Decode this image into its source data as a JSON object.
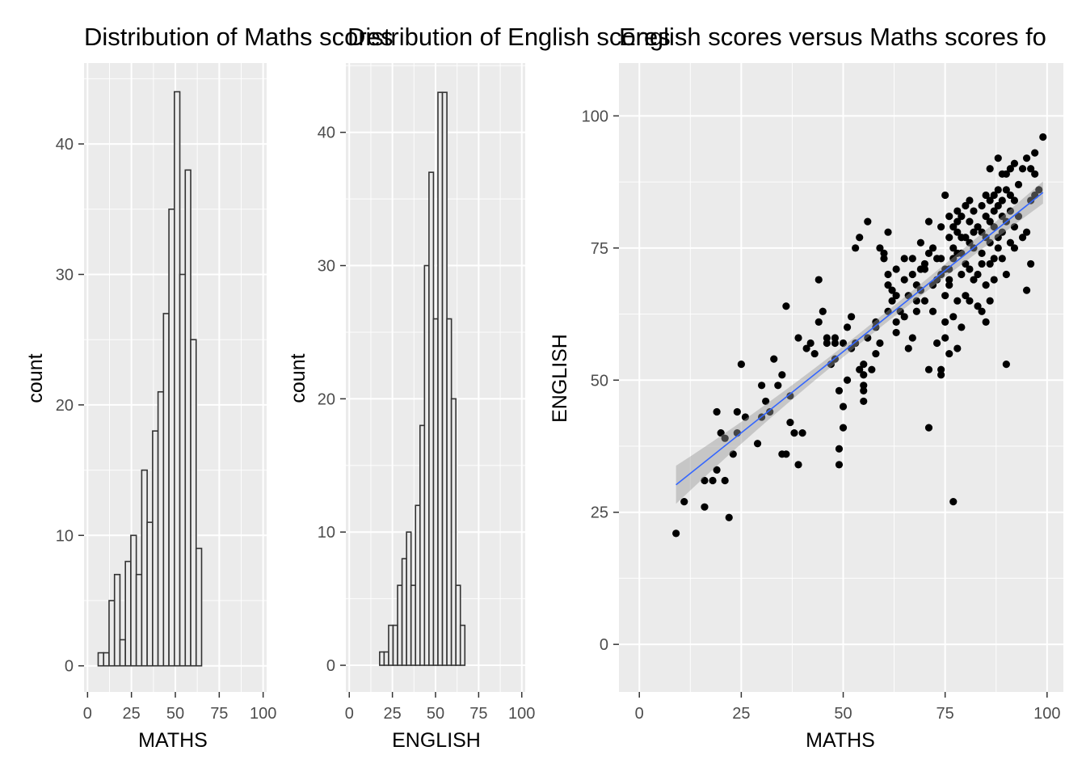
{
  "chart_data": [
    {
      "type": "bar",
      "subtype": "histogram",
      "title": "Distribution of Maths scores",
      "xlabel": "MATHS",
      "ylabel": "count",
      "xlim": [
        0,
        100
      ],
      "ylim": [
        0,
        44
      ],
      "xticks": [
        0,
        25,
        50,
        75,
        100
      ],
      "yticks": [
        0,
        10,
        20,
        30,
        40
      ],
      "bin_width": 3.1,
      "bins": [
        {
          "x": 7.6,
          "count": 1
        },
        {
          "x": 10.7,
          "count": 1
        },
        {
          "x": 13.8,
          "count": 5
        },
        {
          "x": 16.9,
          "count": 7
        },
        {
          "x": 20.0,
          "count": 2
        },
        {
          "x": 23.1,
          "count": 8
        },
        {
          "x": 26.2,
          "count": 10
        },
        {
          "x": 29.3,
          "count": 7
        },
        {
          "x": 32.4,
          "count": 15
        },
        {
          "x": 35.5,
          "count": 11
        },
        {
          "x": 38.6,
          "count": 18
        },
        {
          "x": 41.7,
          "count": 21
        },
        {
          "x": 44.8,
          "count": 27
        },
        {
          "x": 47.9,
          "count": 35
        },
        {
          "x": 51.0,
          "count": 44
        },
        {
          "x": 54.1,
          "count": 30
        },
        {
          "x": 57.2,
          "count": 38
        },
        {
          "x": 60.3,
          "count": 25
        },
        {
          "x": 63.4,
          "count": 9
        }
      ],
      "grid": true
    },
    {
      "type": "bar",
      "subtype": "histogram",
      "title": "Distribution of English scores",
      "xlabel": "ENGLISH",
      "ylabel": "count",
      "xlim": [
        0,
        100
      ],
      "ylim": [
        0,
        43
      ],
      "xticks": [
        0,
        25,
        50,
        75,
        100
      ],
      "yticks": [
        0,
        10,
        20,
        30,
        40
      ],
      "bin_width": 2.6,
      "bins": [
        {
          "x": 18.9,
          "count": 1
        },
        {
          "x": 21.5,
          "count": 1
        },
        {
          "x": 24.1,
          "count": 3
        },
        {
          "x": 26.7,
          "count": 3
        },
        {
          "x": 29.3,
          "count": 6
        },
        {
          "x": 31.9,
          "count": 8
        },
        {
          "x": 34.5,
          "count": 10
        },
        {
          "x": 37.1,
          "count": 6
        },
        {
          "x": 39.7,
          "count": 12
        },
        {
          "x": 42.3,
          "count": 18
        },
        {
          "x": 44.9,
          "count": 30
        },
        {
          "x": 47.5,
          "count": 37
        },
        {
          "x": 50.1,
          "count": 26
        },
        {
          "x": 52.7,
          "count": 43
        },
        {
          "x": 55.3,
          "count": 43
        },
        {
          "x": 57.9,
          "count": 26
        },
        {
          "x": 60.5,
          "count": 20
        },
        {
          "x": 63.1,
          "count": 6
        },
        {
          "x": 65.7,
          "count": 3
        }
      ],
      "grid": true
    },
    {
      "type": "scatter",
      "title": "English scores versus Maths scores fo",
      "xlabel": "MATHS",
      "ylabel": "ENGLISH",
      "xlim": [
        0,
        100
      ],
      "ylim": [
        0,
        100
      ],
      "xticks": [
        0,
        25,
        50,
        75,
        100
      ],
      "yticks": [
        0,
        25,
        50,
        75,
        100
      ],
      "smooth": {
        "method": "lm",
        "x": [
          9,
          99
        ],
        "y": [
          30.2,
          85.5
        ],
        "se_band_half_width": [
          3.6,
          2.1
        ]
      },
      "points": [
        [
          9,
          21
        ],
        [
          11,
          27
        ],
        [
          16,
          26
        ],
        [
          16,
          31
        ],
        [
          18,
          31
        ],
        [
          19,
          33
        ],
        [
          19,
          44
        ],
        [
          20,
          40
        ],
        [
          21,
          31
        ],
        [
          21,
          39
        ],
        [
          22,
          24
        ],
        [
          23,
          36
        ],
        [
          24,
          44
        ],
        [
          24,
          40
        ],
        [
          25,
          53
        ],
        [
          26,
          43
        ],
        [
          29,
          38
        ],
        [
          30,
          49
        ],
        [
          30,
          43
        ],
        [
          31,
          46
        ],
        [
          32,
          44
        ],
        [
          33,
          54
        ],
        [
          34,
          49
        ],
        [
          35,
          51
        ],
        [
          35,
          36
        ],
        [
          36,
          36
        ],
        [
          36,
          64
        ],
        [
          37,
          47
        ],
        [
          37,
          42
        ],
        [
          38,
          40
        ],
        [
          39,
          34
        ],
        [
          39,
          58
        ],
        [
          40,
          40
        ],
        [
          41,
          56
        ],
        [
          42,
          57
        ],
        [
          43,
          55
        ],
        [
          44,
          69
        ],
        [
          44,
          61
        ],
        [
          45,
          63
        ],
        [
          46,
          58
        ],
        [
          46,
          57
        ],
        [
          47,
          53
        ],
        [
          48,
          54
        ],
        [
          48,
          57
        ],
        [
          48,
          58
        ],
        [
          49,
          34
        ],
        [
          49,
          37
        ],
        [
          49,
          48
        ],
        [
          50,
          45
        ],
        [
          50,
          41
        ],
        [
          50,
          57
        ],
        [
          51,
          60
        ],
        [
          51,
          50
        ],
        [
          52,
          56
        ],
        [
          52,
          62
        ],
        [
          53,
          57
        ],
        [
          53,
          75
        ],
        [
          54,
          77
        ],
        [
          54,
          52
        ],
        [
          55,
          49
        ],
        [
          55,
          46
        ],
        [
          55,
          48
        ],
        [
          55,
          51
        ],
        [
          55,
          53
        ],
        [
          56,
          80
        ],
        [
          56,
          58
        ],
        [
          57,
          52
        ],
        [
          58,
          55
        ],
        [
          58,
          61
        ],
        [
          58,
          60
        ],
        [
          59,
          57
        ],
        [
          59,
          75
        ],
        [
          60,
          73
        ],
        [
          60,
          74
        ],
        [
          61,
          78
        ],
        [
          61,
          70
        ],
        [
          61,
          63
        ],
        [
          61,
          68
        ],
        [
          62,
          65
        ],
        [
          62,
          67
        ],
        [
          63,
          71
        ],
        [
          63,
          61
        ],
        [
          63,
          59
        ],
        [
          63,
          66
        ],
        [
          64,
          63
        ],
        [
          65,
          69
        ],
        [
          65,
          73
        ],
        [
          65,
          62
        ],
        [
          66,
          56
        ],
        [
          66,
          66
        ],
        [
          67,
          58
        ],
        [
          67,
          70
        ],
        [
          67,
          73
        ],
        [
          68,
          68
        ],
        [
          68,
          63
        ],
        [
          68,
          65
        ],
        [
          69,
          76
        ],
        [
          69,
          71
        ],
        [
          69,
          67
        ],
        [
          70,
          71
        ],
        [
          70,
          65
        ],
        [
          70,
          72
        ],
        [
          71,
          74
        ],
        [
          71,
          52
        ],
        [
          71,
          41
        ],
        [
          71,
          80
        ],
        [
          72,
          68
        ],
        [
          72,
          75
        ],
        [
          72,
          63
        ],
        [
          73,
          73
        ],
        [
          73,
          69
        ],
        [
          73,
          57
        ],
        [
          74,
          79
        ],
        [
          74,
          73
        ],
        [
          74,
          70
        ],
        [
          74,
          52
        ],
        [
          74,
          51
        ],
        [
          75,
          85
        ],
        [
          75,
          71
        ],
        [
          75,
          66
        ],
        [
          75,
          61
        ],
        [
          75,
          58
        ],
        [
          76,
          81
        ],
        [
          76,
          77
        ],
        [
          76,
          71
        ],
        [
          76,
          69
        ],
        [
          76,
          68
        ],
        [
          76,
          55
        ],
        [
          77,
          79
        ],
        [
          77,
          73
        ],
        [
          77,
          75
        ],
        [
          77,
          62
        ],
        [
          77,
          27
        ],
        [
          78,
          82
        ],
        [
          78,
          80
        ],
        [
          78,
          78
        ],
        [
          78,
          74
        ],
        [
          78,
          65
        ],
        [
          78,
          56
        ],
        [
          79,
          81
        ],
        [
          79,
          77
        ],
        [
          79,
          74
        ],
        [
          79,
          70
        ],
        [
          79,
          60
        ],
        [
          80,
          83
        ],
        [
          80,
          77
        ],
        [
          80,
          72
        ],
        [
          80,
          66
        ],
        [
          81,
          84
        ],
        [
          81,
          80
        ],
        [
          81,
          76
        ],
        [
          81,
          71
        ],
        [
          81,
          65
        ],
        [
          82,
          82
        ],
        [
          82,
          78
        ],
        [
          82,
          75
        ],
        [
          82,
          69
        ],
        [
          83,
          79
        ],
        [
          83,
          70
        ],
        [
          83,
          64
        ],
        [
          84,
          83
        ],
        [
          84,
          78
        ],
        [
          84,
          74
        ],
        [
          84,
          72
        ],
        [
          84,
          63
        ],
        [
          85,
          85
        ],
        [
          85,
          81
        ],
        [
          85,
          77
        ],
        [
          85,
          68
        ],
        [
          85,
          61
        ],
        [
          86,
          90
        ],
        [
          86,
          84
        ],
        [
          86,
          80
        ],
        [
          86,
          76
        ],
        [
          86,
          72
        ],
        [
          86,
          65
        ],
        [
          87,
          85
        ],
        [
          87,
          82
        ],
        [
          87,
          79
        ],
        [
          87,
          73
        ],
        [
          87,
          69
        ],
        [
          88,
          92
        ],
        [
          88,
          86
        ],
        [
          88,
          83
        ],
        [
          88,
          77
        ],
        [
          88,
          75
        ],
        [
          89,
          89
        ],
        [
          89,
          84
        ],
        [
          89,
          81
        ],
        [
          89,
          78
        ],
        [
          89,
          73
        ],
        [
          90,
          89
        ],
        [
          90,
          86
        ],
        [
          90,
          80
        ],
        [
          90,
          70
        ],
        [
          90,
          53
        ],
        [
          91,
          90
        ],
        [
          91,
          85
        ],
        [
          91,
          82
        ],
        [
          91,
          76
        ],
        [
          92,
          91
        ],
        [
          92,
          84
        ],
        [
          92,
          79
        ],
        [
          92,
          75
        ],
        [
          93,
          87
        ],
        [
          93,
          81
        ],
        [
          94,
          90
        ],
        [
          94,
          77
        ],
        [
          95,
          92
        ],
        [
          95,
          78
        ],
        [
          95,
          67
        ],
        [
          96,
          90
        ],
        [
          96,
          84
        ],
        [
          96,
          72
        ],
        [
          97,
          93
        ],
        [
          97,
          89
        ],
        [
          97,
          85
        ],
        [
          98,
          86
        ],
        [
          99,
          96
        ]
      ],
      "grid": true
    }
  ]
}
